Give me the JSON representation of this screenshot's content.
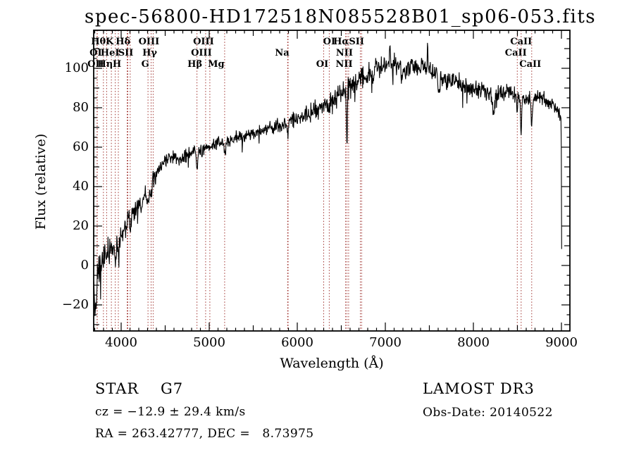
{
  "title": "spec-56800-HD172518N085528B01_sp06-053.fits",
  "chart_data": {
    "type": "line",
    "title": "spec-56800-HD172518N085528B01_sp06-053.fits",
    "xlabel": "Wavelength (Å)",
    "ylabel": "Flux (relative)",
    "xlim": [
      3688,
      9096
    ],
    "ylim": [
      -33.2,
      119.3
    ],
    "grid": false,
    "legend": false,
    "x_major_ticks": [
      4000,
      5000,
      6000,
      7000,
      8000,
      9000
    ],
    "x_tick_labels": [
      "4000",
      "5000",
      "6000",
      "7000",
      "8000",
      "9000"
    ],
    "x_minor_step": 100,
    "y_major_ticks": [
      -20,
      0,
      20,
      40,
      60,
      80,
      100
    ],
    "y_tick_labels": [
      "−20",
      "0",
      "20",
      "40",
      "60",
      "80",
      "100"
    ],
    "y_minor_step": 5,
    "series": {
      "name": "spectrum",
      "seed": 42,
      "x_start": 3690,
      "x_end": 9003,
      "sample_step": 4,
      "envelope": [
        [
          3690,
          -6
        ],
        [
          3710,
          -8
        ],
        [
          3730,
          -3
        ],
        [
          3760,
          -2
        ],
        [
          3800,
          2
        ],
        [
          3840,
          6
        ],
        [
          3880,
          9
        ],
        [
          3920,
          11
        ],
        [
          3960,
          13
        ],
        [
          4000,
          16
        ],
        [
          4050,
          20
        ],
        [
          4100,
          24
        ],
        [
          4150,
          28
        ],
        [
          4200,
          31
        ],
        [
          4250,
          34
        ],
        [
          4300,
          38
        ],
        [
          4350,
          42
        ],
        [
          4400,
          46
        ],
        [
          4450,
          50
        ],
        [
          4500,
          53
        ],
        [
          4550,
          55
        ],
        [
          4600,
          55
        ],
        [
          4650,
          54
        ],
        [
          4700,
          55
        ],
        [
          4750,
          56
        ],
        [
          4800,
          57
        ],
        [
          4850,
          57
        ],
        [
          4900,
          58
        ],
        [
          4950,
          59
        ],
        [
          5000,
          60
        ],
        [
          5100,
          62
        ],
        [
          5200,
          63
        ],
        [
          5300,
          65
        ],
        [
          5400,
          66
        ],
        [
          5500,
          67
        ],
        [
          5600,
          69
        ],
        [
          5700,
          70
        ],
        [
          5800,
          71
        ],
        [
          5900,
          73
        ],
        [
          6000,
          75
        ],
        [
          6100,
          77
        ],
        [
          6200,
          79
        ],
        [
          6300,
          81
        ],
        [
          6400,
          84
        ],
        [
          6500,
          87
        ],
        [
          6600,
          91
        ],
        [
          6700,
          95
        ],
        [
          6800,
          97
        ],
        [
          6900,
          100
        ],
        [
          7000,
          102
        ],
        [
          7100,
          102
        ],
        [
          7200,
          100
        ],
        [
          7300,
          101
        ],
        [
          7400,
          100
        ],
        [
          7500,
          99
        ],
        [
          7600,
          96
        ],
        [
          7700,
          94
        ],
        [
          7800,
          94
        ],
        [
          7900,
          91
        ],
        [
          8000,
          89
        ],
        [
          8100,
          89
        ],
        [
          8200,
          86
        ],
        [
          8300,
          87
        ],
        [
          8400,
          88
        ],
        [
          8500,
          86
        ],
        [
          8600,
          84
        ],
        [
          8700,
          86
        ],
        [
          8800,
          85
        ],
        [
          8900,
          81
        ],
        [
          8950,
          79
        ],
        [
          8985,
          76
        ],
        [
          8995,
          74
        ],
        [
          8999,
          55
        ],
        [
          9001,
          15
        ],
        [
          9003,
          2
        ]
      ],
      "noise_amplitude": [
        [
          3690,
          13
        ],
        [
          3800,
          11
        ],
        [
          3950,
          8
        ],
        [
          4400,
          5
        ],
        [
          4800,
          4
        ],
        [
          5600,
          4
        ],
        [
          6300,
          5.5
        ],
        [
          6600,
          7
        ],
        [
          7600,
          6
        ],
        [
          8400,
          5
        ],
        [
          8900,
          4
        ],
        [
          8990,
          3
        ],
        [
          8999,
          1
        ],
        [
          9003,
          0.5
        ]
      ],
      "absorption_dips": [
        [
          3705,
          16,
          8
        ],
        [
          3933,
          12,
          9
        ],
        [
          3968,
          10,
          9
        ],
        [
          4102,
          8,
          7
        ],
        [
          4227,
          6,
          8
        ],
        [
          4305,
          7,
          10
        ],
        [
          4340,
          6,
          7
        ],
        [
          4861,
          7,
          7
        ],
        [
          5175,
          5,
          10
        ],
        [
          5892,
          7,
          9
        ],
        [
          6563,
          28,
          5
        ],
        [
          6867,
          7,
          9
        ],
        [
          7190,
          6,
          8
        ],
        [
          7605,
          7,
          10
        ],
        [
          8230,
          8,
          12
        ],
        [
          8498,
          8,
          5
        ],
        [
          8542,
          20,
          6
        ],
        [
          8662,
          16,
          6
        ]
      ],
      "emission_spikes": [
        [
          7480,
          14,
          4
        ],
        [
          6890,
          8,
          5
        ],
        [
          7050,
          8,
          6
        ]
      ]
    },
    "spectral_lines": {
      "color": "#a13531",
      "wavelengths": [
        3726,
        3729,
        3798,
        3835,
        3889,
        3933,
        3968,
        4068,
        4076,
        4102,
        4305,
        4340,
        4363,
        4861,
        4959,
        5007,
        5175,
        5890,
        5896,
        6300,
        6363,
        6548,
        6563,
        6583,
        6716,
        6731,
        8498,
        8542,
        8662
      ],
      "labels": [
        {
          "text": "Hθ",
          "row": 1,
          "wl": 3798,
          "dx": -7
        },
        {
          "text": "K",
          "row": 1,
          "wl": 3933,
          "dx": -8
        },
        {
          "text": "Hδ",
          "row": 1,
          "wl": 4102,
          "dx": -10
        },
        {
          "text": "OIII",
          "row": 1,
          "wl": 4363,
          "dx": -6
        },
        {
          "text": "OIII",
          "row": 1,
          "wl": 5007,
          "dx": -9
        },
        {
          "text": "OI",
          "row": 1,
          "wl": 6363,
          "dx": 0
        },
        {
          "text": "HαSII",
          "row": 1,
          "wl": 6584,
          "dx": 0
        },
        {
          "text": "CaII",
          "row": 1,
          "wl": 8542,
          "dx": 0
        },
        {
          "text": "OI",
          "row": 2,
          "wl": 3727,
          "dx": -2
        },
        {
          "text": "HeI",
          "row": 2,
          "wl": 3889,
          "dx": -2
        },
        {
          "text": "SII",
          "row": 2,
          "wl": 4068,
          "dx": -2
        },
        {
          "text": "Hγ",
          "row": 2,
          "wl": 4340,
          "dx": -2
        },
        {
          "text": "OIII",
          "row": 2,
          "wl": 4959,
          "dx": -6
        },
        {
          "text": "Na",
          "row": 2,
          "wl": 5892,
          "dx": -8
        },
        {
          "text": "NII",
          "row": 2,
          "wl": 6583,
          "dx": -6
        },
        {
          "text": "CaII",
          "row": 2,
          "wl": 8498,
          "dx": -2
        },
        {
          "text": "OII",
          "row": 3,
          "wl": 3727,
          "dx": -2
        },
        {
          "text": "Hη",
          "row": 3,
          "wl": 3835,
          "dx": -2
        },
        {
          "text": "H",
          "row": 3,
          "wl": 3968,
          "dx": -2
        },
        {
          "text": "G",
          "row": 3,
          "wl": 4305,
          "dx": -4
        },
        {
          "text": "Hβ",
          "row": 3,
          "wl": 4861,
          "dx": -3
        },
        {
          "text": "Mg",
          "row": 3,
          "wl": 5175,
          "dx": -12
        },
        {
          "text": "OI",
          "row": 3,
          "wl": 6300,
          "dx": -2
        },
        {
          "text": "NII",
          "row": 3,
          "wl": 6548,
          "dx": -2
        },
        {
          "text": "CaII",
          "row": 3,
          "wl": 8662,
          "dx": -2
        }
      ]
    }
  },
  "footer": {
    "class_label": "STAR",
    "subclass": "G7",
    "survey": "LAMOST DR3",
    "cz_line": "cz = −12.9 ± 29.4 km/s",
    "obs_date_line": "Obs-Date: 20140522",
    "radec_line": "RA = 263.42777, DEC =   8.73975"
  }
}
